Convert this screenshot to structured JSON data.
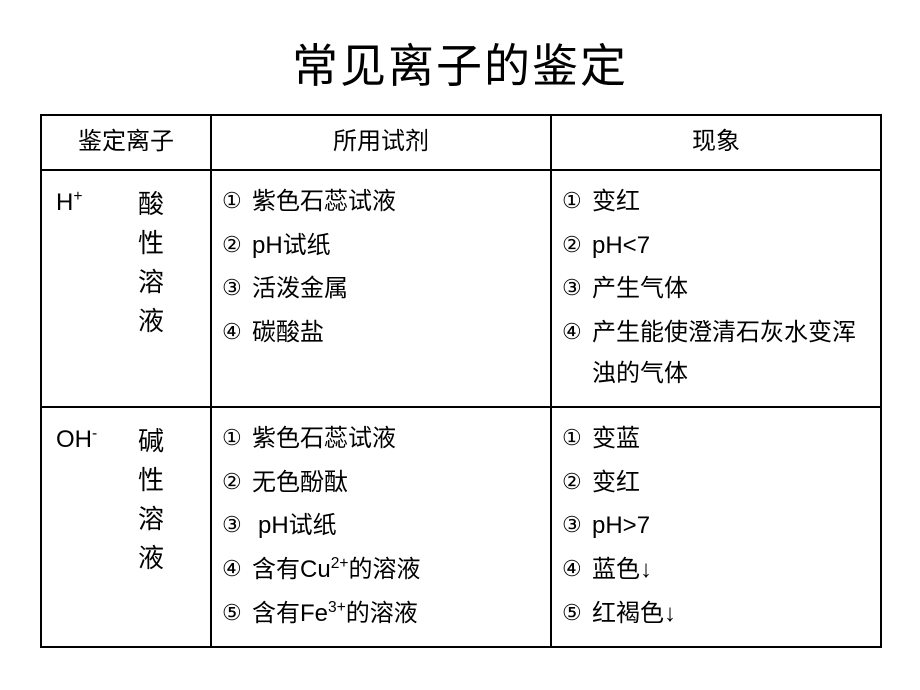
{
  "title": "常见离子的鉴定",
  "header": {
    "ion": "鉴定离子",
    "reagent": "所用试剂",
    "phenomenon": "现象"
  },
  "rows": [
    {
      "ion_formula_html": "H<sup>+</sup>",
      "ion_desc": [
        "酸",
        "性",
        "溶",
        "液"
      ],
      "reagents": [
        {
          "n": "①",
          "text": "紫色石蕊试液"
        },
        {
          "n": "②",
          "text": "pH试纸",
          "sans": true
        },
        {
          "n": "③",
          "text": "活泼金属"
        },
        {
          "n": "④",
          "text": "碳酸盐"
        }
      ],
      "phenomena": [
        {
          "n": "①",
          "text": "变红"
        },
        {
          "n": "②",
          "text": "pH<7",
          "sans": true
        },
        {
          "n": "③",
          "text": "产生气体"
        },
        {
          "n": "④",
          "text": "产生能使澄清石灰水变浑浊的气体"
        }
      ]
    },
    {
      "ion_formula_html": "OH<sup>-</sup>",
      "ion_desc": [
        "碱",
        "性",
        "溶",
        "液"
      ],
      "reagents": [
        {
          "n": "①",
          "text": "紫色石蕊试液"
        },
        {
          "n": "②",
          "text": "无色酚酞"
        },
        {
          "n": "③",
          "text": "pH试纸",
          "sans": true,
          "pad": true
        },
        {
          "n": "④",
          "html": "含有<span class=\"formula\">Cu<sup>2+</sup></span>的溶液"
        },
        {
          "n": "⑤",
          "html": "含有<span class=\"formula\">Fe<sup>3+</sup></span>的溶液"
        }
      ],
      "phenomena": [
        {
          "n": "①",
          "text": "变蓝"
        },
        {
          "n": "②",
          "text": "变红"
        },
        {
          "n": "③",
          "text": "pH>7",
          "sans": true
        },
        {
          "n": "④",
          "text": "蓝色↓"
        },
        {
          "n": "⑤",
          "text": "红褐色↓"
        }
      ]
    }
  ]
}
